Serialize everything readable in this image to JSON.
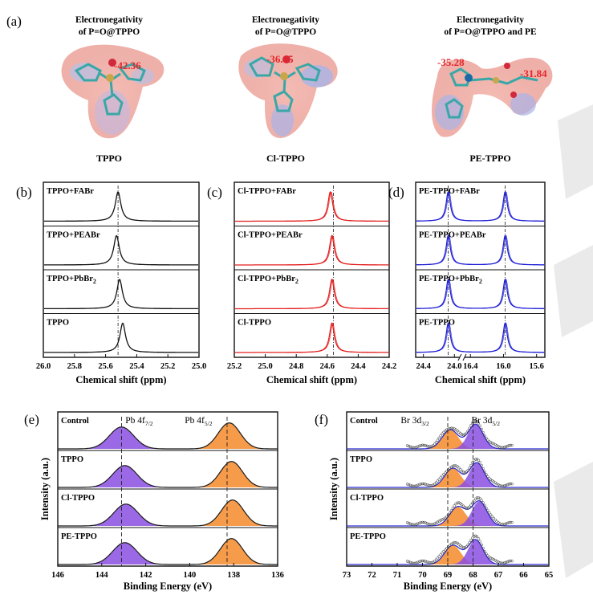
{
  "colors": {
    "black_line": "#111111",
    "red_line": "#e41e1e",
    "blue_line": "#1f1fd6",
    "purple_fill": "#8a4fe0",
    "orange_fill": "#f58a2a",
    "ev_value": "#e3262b",
    "watermark": "#d9d9d9"
  },
  "panel_a": {
    "letter": "(a)",
    "molecules": [
      {
        "title_line1": "Electronegativity",
        "title_line2": "of P=O@TPPO",
        "name": "TPPO",
        "values": [
          "-42.36"
        ]
      },
      {
        "title_line1": "Electronegativity",
        "title_line2": "of P=O@TPPO",
        "name": "Cl-TPPO",
        "values": [
          "-36.85"
        ]
      },
      {
        "title_line1": "Electronegativity",
        "title_line2": "of P=O@TPPO and PE",
        "name": "PE-TPPO",
        "values": [
          "-35.28",
          "-31.84"
        ]
      }
    ]
  },
  "chart_data": [
    {
      "id": "b",
      "letter": "(b)",
      "type": "line",
      "xlabel": "Chemical shift (ppm)",
      "xlim": [
        26.0,
        25.0
      ],
      "x_reversed": true,
      "ticks": [
        "26.0",
        "25.8",
        "25.6",
        "25.4",
        "25.2",
        "25.0"
      ],
      "ref_line_x": 25.52,
      "series": [
        {
          "name": "TPPO+FABr",
          "peaks": [
            25.52
          ]
        },
        {
          "name": "TPPO+PEABr",
          "peaks": [
            25.53
          ]
        },
        {
          "name": "TPPO+PbBr2",
          "peaks": [
            25.51
          ]
        },
        {
          "name": "TPPO",
          "peaks": [
            25.49
          ]
        }
      ]
    },
    {
      "id": "c",
      "letter": "(c)",
      "type": "line",
      "xlabel": "Chemical shift (ppm)",
      "xlim": [
        25.2,
        24.2
      ],
      "x_reversed": true,
      "ticks": [
        "25.2",
        "25.0",
        "24.8",
        "24.6",
        "24.4",
        "24.2"
      ],
      "ref_line_x": 24.56,
      "series": [
        {
          "name": "Cl-TPPO+FABr",
          "peaks": [
            24.58
          ]
        },
        {
          "name": "Cl-TPPO+PEABr",
          "peaks": [
            24.57
          ]
        },
        {
          "name": "Cl-TPPO+PbBr2",
          "peaks": [
            24.57
          ]
        },
        {
          "name": "Cl-TPPO",
          "peaks": [
            24.57
          ]
        }
      ]
    },
    {
      "id": "d",
      "letter": "(d)",
      "type": "line",
      "xlabel": "Chemical shift (ppm)",
      "axis_break": true,
      "ticks": [
        "24.4",
        "24.0",
        "16.4",
        "16.0",
        "15.6"
      ],
      "ref_line_x": [
        "24.08",
        "15.98"
      ],
      "series": [
        {
          "name": "PE-TPPO+FABr",
          "peaks": [
            24.08,
            15.98
          ]
        },
        {
          "name": "PE-TPPO+PEABr",
          "peaks": [
            24.08,
            15.98
          ]
        },
        {
          "name": "PE-TPPO+PbBr2",
          "peaks": [
            24.08,
            15.98
          ]
        },
        {
          "name": "PE-TPPO",
          "peaks": [
            24.08,
            15.98
          ]
        }
      ]
    },
    {
      "id": "e",
      "letter": "(e)",
      "type": "area",
      "xlabel": "Binding Energy (eV)",
      "ylabel": "Intensity (a.u.)",
      "xlim": [
        146,
        136
      ],
      "x_reversed": true,
      "ticks": [
        "146",
        "144",
        "142",
        "140",
        "138",
        "136"
      ],
      "ref_lines": [
        143.1,
        138.3
      ],
      "peak_labels": [
        {
          "text": "Pb 4f",
          "sub": "7/2"
        },
        {
          "text": "Pb 4f",
          "sub": "5/2"
        }
      ],
      "series": [
        {
          "name": "Control",
          "peaks": [
            143.1,
            138.2
          ]
        },
        {
          "name": "TPPO",
          "peaks": [
            142.95,
            138.1
          ]
        },
        {
          "name": "Cl-TPPO",
          "peaks": [
            142.9,
            138.05
          ]
        },
        {
          "name": "PE-TPPO",
          "peaks": [
            142.95,
            138.1
          ]
        }
      ]
    },
    {
      "id": "f",
      "letter": "(f)",
      "type": "area",
      "xlabel": "Binding Energy (eV)",
      "ylabel": "Intensity (a.u.)",
      "xlim": [
        73,
        65
      ],
      "x_reversed": true,
      "ticks": [
        "73",
        "72",
        "71",
        "70",
        "69",
        "68",
        "67",
        "66",
        "65"
      ],
      "ref_lines": [
        69.0,
        68.0
      ],
      "peak_labels": [
        {
          "text": "Br 3d",
          "sub": "3/2"
        },
        {
          "text": "Br 3d",
          "sub": "5/2"
        }
      ],
      "series": [
        {
          "name": "Control",
          "peaks": [
            68.9,
            67.9
          ]
        },
        {
          "name": "TPPO",
          "peaks": [
            68.8,
            67.85
          ]
        },
        {
          "name": "Cl-TPPO",
          "peaks": [
            68.6,
            67.75
          ]
        },
        {
          "name": "PE-TPPO",
          "peaks": [
            68.8,
            67.9
          ]
        }
      ]
    }
  ]
}
